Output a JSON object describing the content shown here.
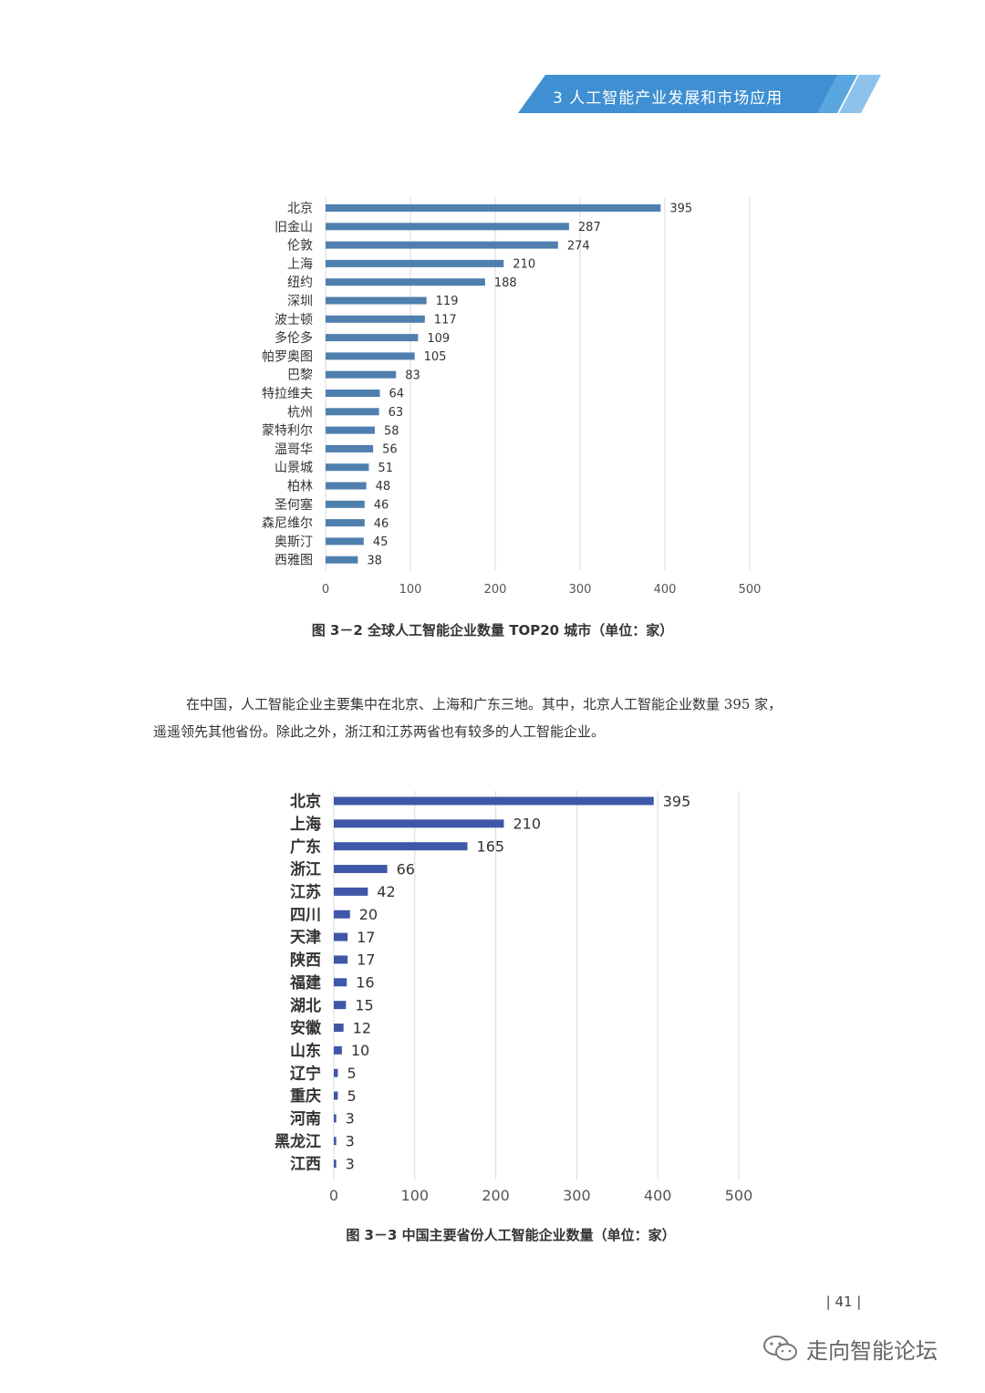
{
  "header": {
    "title": "3 人工智能产业发展和市场应用"
  },
  "chart1_caption": "图 3－2 全球人工智能企业数量 TOP20 城市（单位：家）",
  "chart2_caption": "图 3－3 中国主要省份人工智能企业数量（单位：家）",
  "paragraph": {
    "line1": "在中国，人工智能企业主要集中在北京、上海和广东三地。其中，北京人工智能企业数量 395 家，",
    "line2": "遥遥领先其他省份。除此之外，浙江和江苏两省也有较多的人工智能企业。"
  },
  "page_number": "| 41 |",
  "watermark": "走向智能论坛",
  "colors": {
    "bar1": "#4f7fae",
    "bar2": "#3f57a8",
    "grid": "#d9d9d9",
    "banner": "#3f8fd2"
  },
  "chart_data": [
    {
      "type": "bar",
      "orientation": "horizontal",
      "categories": [
        "北京",
        "旧金山",
        "伦敦",
        "上海",
        "纽约",
        "深圳",
        "波士顿",
        "多伦多",
        "帕罗奥图",
        "巴黎",
        "特拉维夫",
        "杭州",
        "蒙特利尔",
        "温哥华",
        "山景城",
        "柏林",
        "圣何塞",
        "森尼维尔",
        "奥斯汀",
        "西雅图"
      ],
      "values": [
        395,
        287,
        274,
        210,
        188,
        119,
        117,
        109,
        105,
        83,
        64,
        63,
        58,
        56,
        51,
        48,
        46,
        46,
        45,
        38
      ],
      "xticks": [
        "0",
        "100",
        "200",
        "300",
        "400",
        "500"
      ],
      "xlim": [
        0,
        500
      ],
      "grid": true,
      "data_labels": true
    },
    {
      "type": "bar",
      "orientation": "horizontal",
      "categories": [
        "北京",
        "上海",
        "广东",
        "浙江",
        "江苏",
        "四川",
        "天津",
        "陕西",
        "福建",
        "湖北",
        "安徽",
        "山东",
        "辽宁",
        "重庆",
        "河南",
        "黑龙江",
        "江西"
      ],
      "values": [
        395,
        210,
        165,
        66,
        42,
        20,
        17,
        17,
        16,
        15,
        12,
        10,
        5,
        5,
        3,
        3,
        3
      ],
      "xticks": [
        "0",
        "100",
        "200",
        "300",
        "400",
        "500"
      ],
      "xlim": [
        0,
        500
      ],
      "grid": true,
      "data_labels": true
    }
  ]
}
